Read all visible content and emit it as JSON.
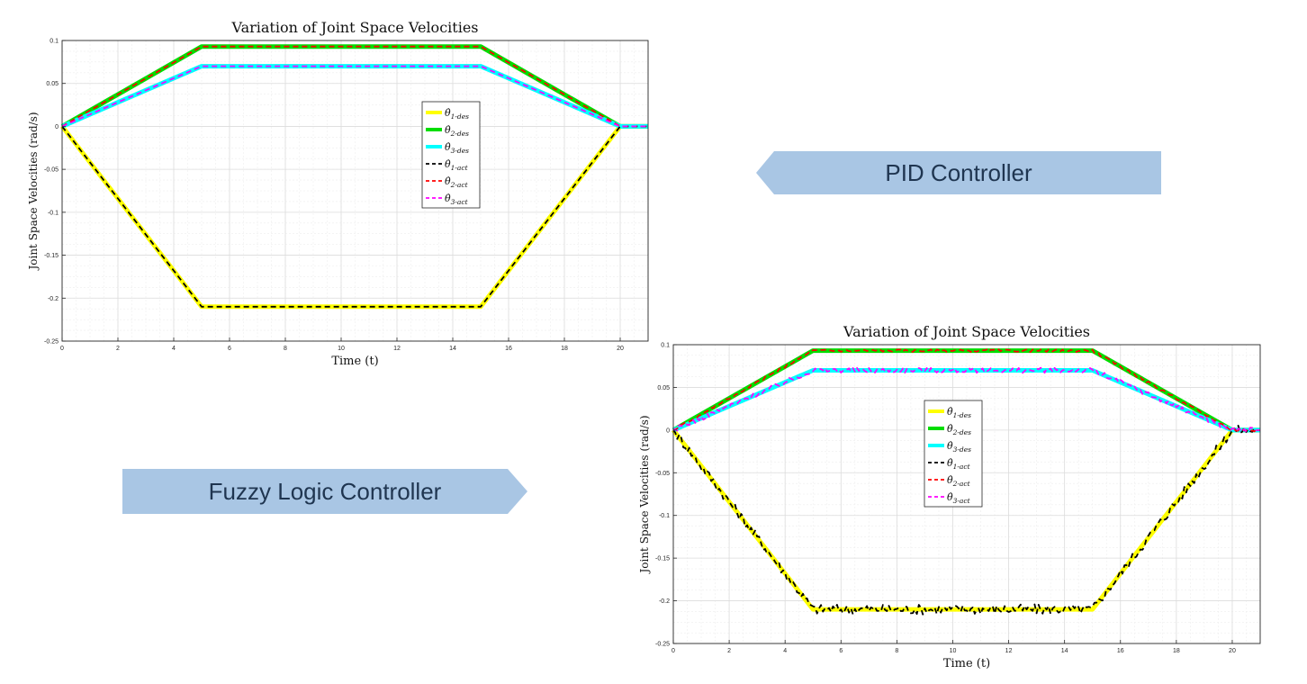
{
  "annotations": {
    "pid_label": "PID Controller",
    "fuzzy_label": "Fuzzy Logic Controller",
    "arrow_color": "#a9c6e4"
  },
  "chart_data": [
    {
      "id": "top",
      "type": "line",
      "title": "Variation of Joint Space Velocities",
      "xlabel": "Time (t)",
      "ylabel": "Joint Space Velocities (rad/s)",
      "xlim": [
        0,
        21
      ],
      "ylim": [
        -0.25,
        0.1
      ],
      "xticks": [
        0,
        2,
        4,
        6,
        8,
        10,
        12,
        14,
        16,
        18,
        20
      ],
      "xtick_labels": [
        "0",
        "2",
        "4",
        "6",
        "8",
        "10",
        "12",
        "14",
        "16",
        "18",
        "20"
      ],
      "yticks": [
        -0.25,
        -0.2,
        -0.15,
        -0.1,
        -0.05,
        0,
        0.05,
        0.1
      ],
      "ytick_labels": [
        "-0.25",
        "-0.2",
        "-0.15",
        "-0.1",
        "-0.05",
        "0",
        "0.05",
        "0.1"
      ],
      "grid": true,
      "legend_position": "center-right",
      "noise": 0,
      "series": [
        {
          "name": "θ̇1-des",
          "color": "#ffff00",
          "style": "solid",
          "x": [
            0,
            5,
            15,
            20,
            21
          ],
          "y": [
            0,
            -0.21,
            -0.21,
            0,
            0
          ]
        },
        {
          "name": "θ̇2-des",
          "color": "#00dd00",
          "style": "solid",
          "x": [
            0,
            5,
            15,
            20,
            21
          ],
          "y": [
            0,
            0.093,
            0.093,
            0,
            0
          ]
        },
        {
          "name": "θ̇3-des",
          "color": "#00ffff",
          "style": "solid",
          "x": [
            0,
            5,
            15,
            20,
            21
          ],
          "y": [
            0,
            0.07,
            0.07,
            0,
            0
          ]
        },
        {
          "name": "θ̇1-act",
          "color": "#000000",
          "style": "dashed",
          "x": [
            0,
            5,
            15,
            20,
            21
          ],
          "y": [
            0,
            -0.21,
            -0.21,
            0,
            0
          ]
        },
        {
          "name": "θ̇2-act",
          "color": "#ff0000",
          "style": "dashed",
          "x": [
            0,
            5,
            15,
            20,
            21
          ],
          "y": [
            0,
            0.093,
            0.093,
            0,
            0
          ]
        },
        {
          "name": "θ̇3-act",
          "color": "#ff00ff",
          "style": "dashed",
          "x": [
            0,
            5,
            15,
            20,
            21
          ],
          "y": [
            0,
            0.07,
            0.07,
            0,
            0
          ]
        }
      ]
    },
    {
      "id": "bottom",
      "type": "line",
      "title": "Variation of Joint Space Velocities",
      "xlabel": "Time (t)",
      "ylabel": "Joint Space Velocities (rad/s)",
      "xlim": [
        0,
        21
      ],
      "ylim": [
        -0.25,
        0.1
      ],
      "xticks": [
        0,
        2,
        4,
        6,
        8,
        10,
        12,
        14,
        16,
        18,
        20
      ],
      "xtick_labels": [
        "0",
        "2",
        "4",
        "6",
        "8",
        "10",
        "12",
        "14",
        "16",
        "18",
        "20"
      ],
      "yticks": [
        -0.25,
        -0.2,
        -0.15,
        -0.1,
        -0.05,
        0,
        0.05,
        0.1
      ],
      "ytick_labels": [
        "-0.25",
        "-0.2",
        "-0.15",
        "-0.1",
        "-0.05",
        "0",
        "0.05",
        "0.1"
      ],
      "grid": true,
      "legend_position": "center",
      "noise": 1,
      "series": [
        {
          "name": "θ̇1-des",
          "color": "#ffff00",
          "style": "solid",
          "x": [
            0,
            5,
            15,
            20,
            21
          ],
          "y": [
            0,
            -0.21,
            -0.21,
            0,
            0
          ]
        },
        {
          "name": "θ̇2-des",
          "color": "#00dd00",
          "style": "solid",
          "x": [
            0,
            5,
            15,
            20,
            21
          ],
          "y": [
            0,
            0.093,
            0.093,
            0,
            0
          ]
        },
        {
          "name": "θ̇3-des",
          "color": "#00ffff",
          "style": "solid",
          "x": [
            0,
            5,
            15,
            20,
            21
          ],
          "y": [
            0,
            0.07,
            0.07,
            0,
            0
          ]
        },
        {
          "name": "θ̇1-act",
          "color": "#000000",
          "style": "dashed",
          "x": [
            0,
            5,
            15,
            20,
            21
          ],
          "y": [
            0,
            -0.21,
            -0.21,
            0,
            0
          ],
          "jitter": 0.006
        },
        {
          "name": "θ̇2-act",
          "color": "#ff0000",
          "style": "dashed",
          "x": [
            0,
            5,
            15,
            20,
            21
          ],
          "y": [
            0,
            0.093,
            0.093,
            0,
            0
          ],
          "jitter": 0.0015
        },
        {
          "name": "θ̇3-act",
          "color": "#ff00ff",
          "style": "dashed",
          "x": [
            0,
            5,
            15,
            20,
            21
          ],
          "y": [
            0,
            0.07,
            0.07,
            0,
            0
          ],
          "jitter": 0.003
        }
      ]
    }
  ]
}
